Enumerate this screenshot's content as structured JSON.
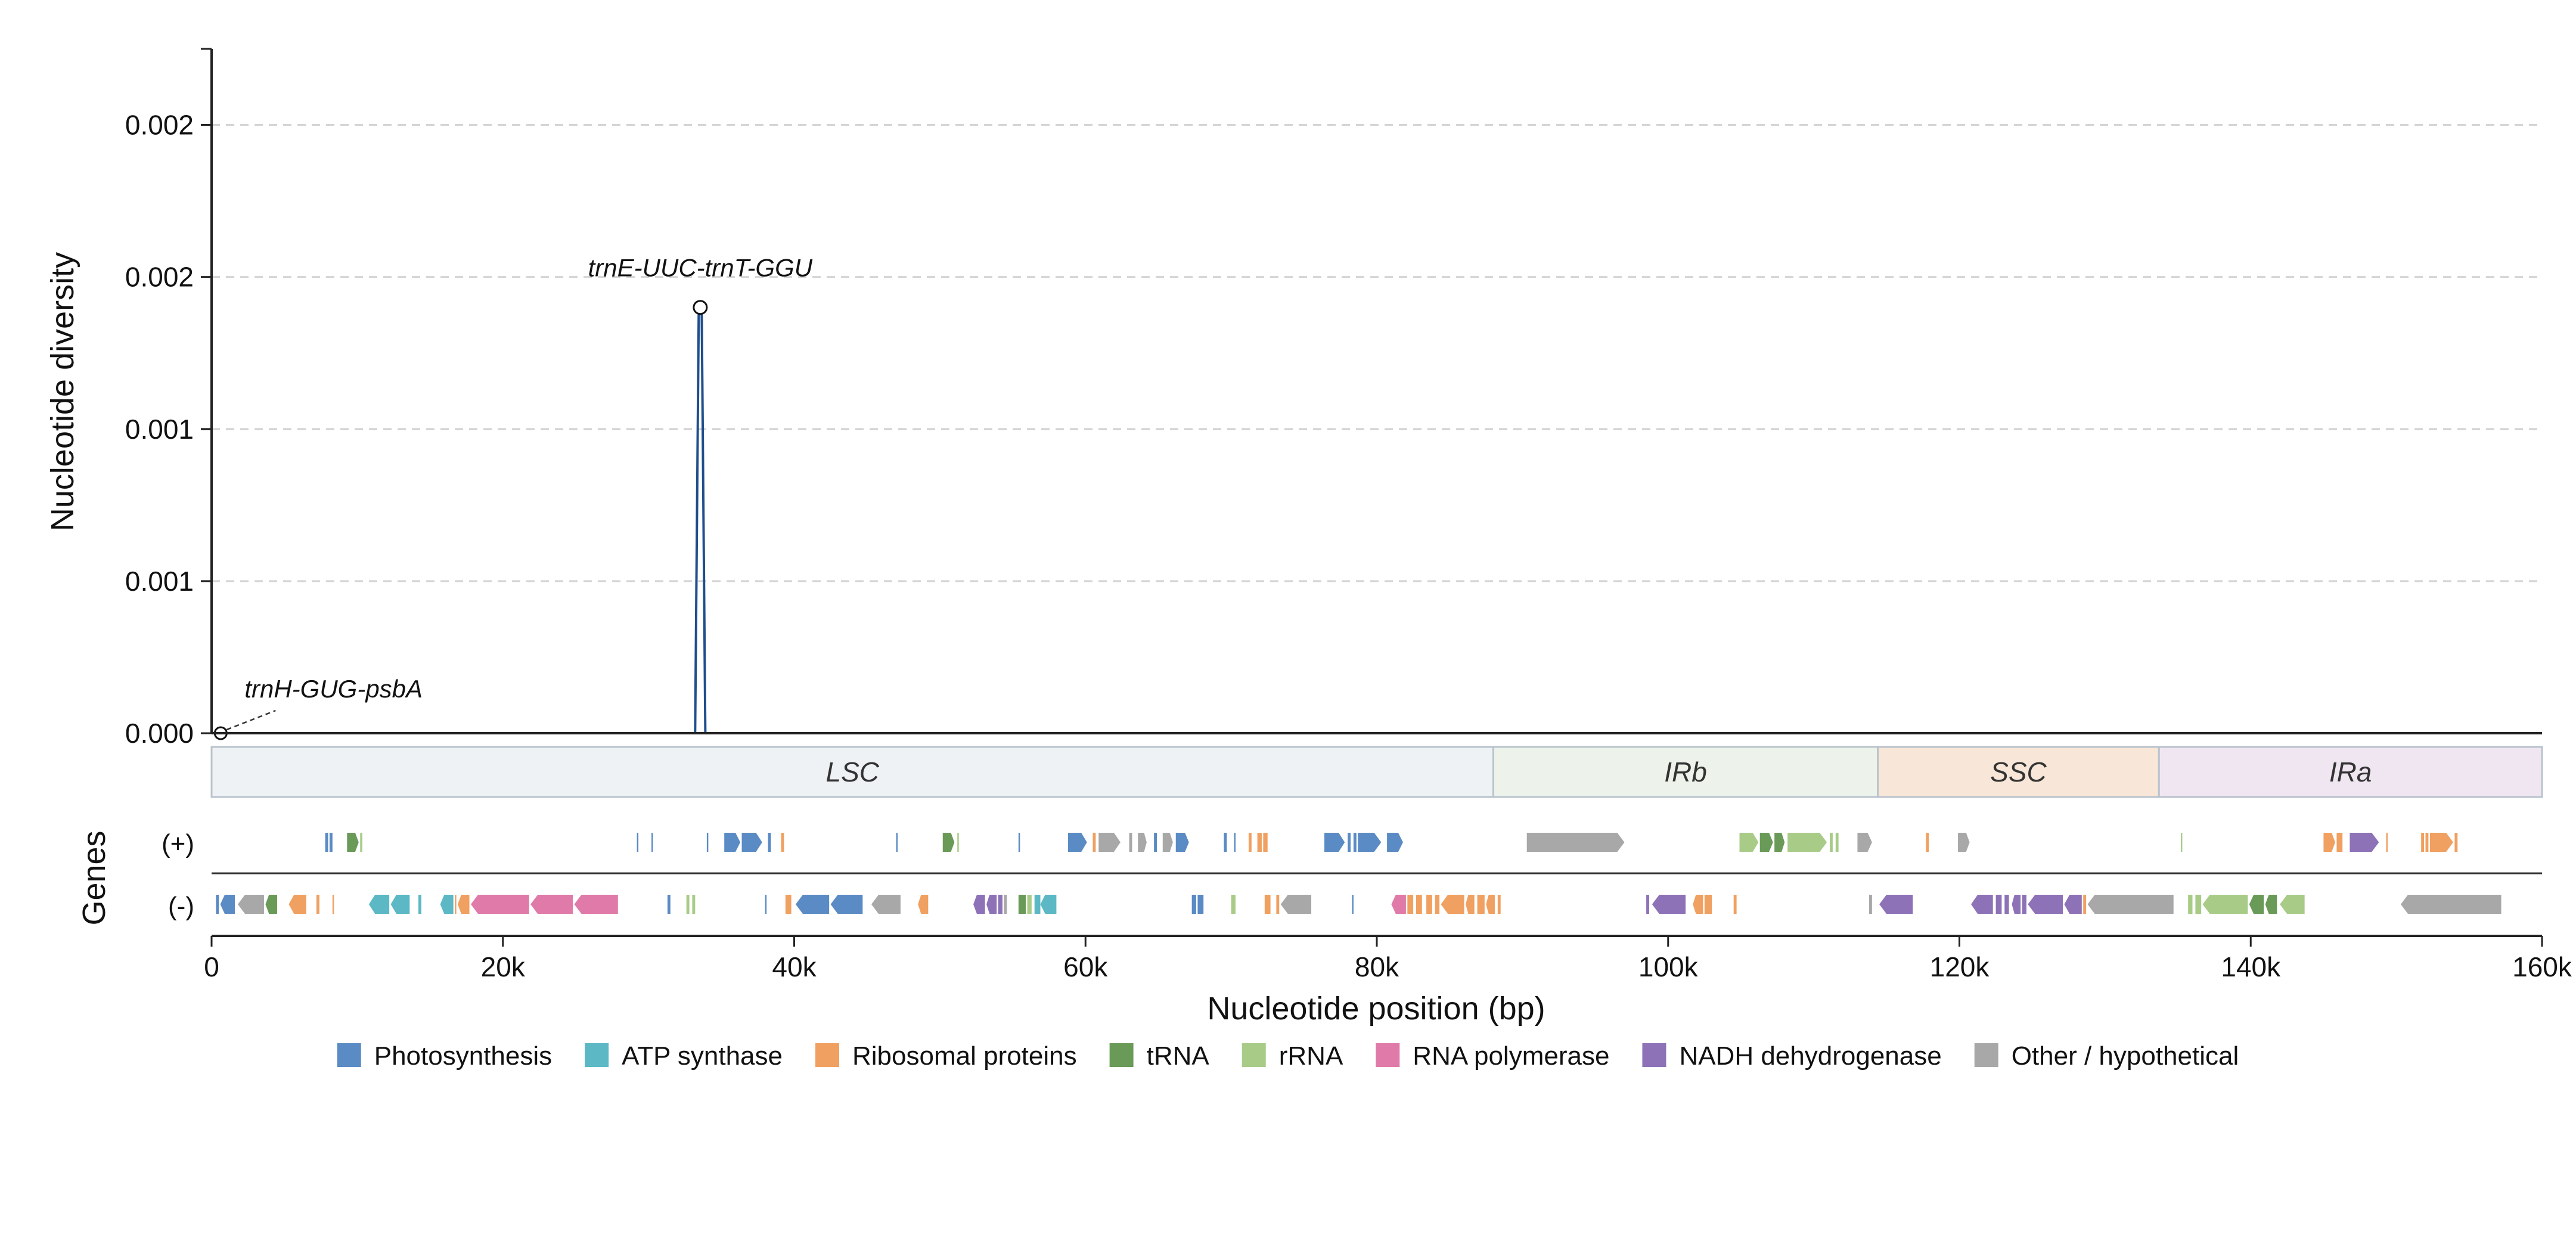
{
  "chart_data": {
    "type": "line",
    "ylabel": "Nucleotide diversity",
    "xlabel": "Nucleotide position (bp)",
    "xlim": [
      0,
      160000
    ],
    "ylim": [
      0,
      0.00225
    ],
    "yticks": [
      {
        "value": 0.0,
        "label": "0.000"
      },
      {
        "value": 0.0005,
        "label": "0.001"
      },
      {
        "value": 0.001,
        "label": "0.001"
      },
      {
        "value": 0.0015,
        "label": "0.002"
      },
      {
        "value": 0.002,
        "label": "0.002"
      }
    ],
    "xticks": [
      {
        "value": 0,
        "label": "0"
      },
      {
        "value": 20000,
        "label": "20k"
      },
      {
        "value": 40000,
        "label": "40k"
      },
      {
        "value": 60000,
        "label": "60k"
      },
      {
        "value": 80000,
        "label": "80k"
      },
      {
        "value": 100000,
        "label": "100k"
      },
      {
        "value": 120000,
        "label": "120k"
      },
      {
        "value": 140000,
        "label": "140k"
      },
      {
        "value": 160000,
        "label": "160k"
      }
    ],
    "grid": "horizontal-dashed",
    "series": [
      {
        "x": [
          0,
          33200,
          33450,
          33650,
          33900,
          160000
        ],
        "y": [
          0,
          0,
          0.0014,
          0.0014,
          0,
          0
        ]
      }
    ],
    "annotations": [
      {
        "text": "trnE-UUC-trnT-GGU",
        "x": 33550,
        "y": 0.0014
      },
      {
        "text": "trnH-GUG-psbA",
        "x": 300,
        "y": 0.0
      }
    ],
    "regions": [
      {
        "name": "LSC",
        "start": 0,
        "end": 88000,
        "color": "#eef2f5"
      },
      {
        "name": "IRb",
        "start": 88000,
        "end": 114400,
        "color": "#edf3ea"
      },
      {
        "name": "SSC",
        "start": 114400,
        "end": 133700,
        "color": "#f8e7d8"
      },
      {
        "name": "IRa",
        "start": 133700,
        "end": 160000,
        "color": "#f0e6f1"
      }
    ],
    "gene_track_label": "Genes",
    "strand_labels": {
      "plus": "(+)",
      "minus": "(-)"
    },
    "gene_categories": [
      {
        "name": "Photosynthesis",
        "color": "#5b8bc4"
      },
      {
        "name": "ATP synthase",
        "color": "#5bb8c4"
      },
      {
        "name": "Ribosomal proteins",
        "color": "#f0a060"
      },
      {
        "name": "tRNA",
        "color": "#6a9a58"
      },
      {
        "name": "rRNA",
        "color": "#a8cc88"
      },
      {
        "name": "RNA polymerase",
        "color": "#e07aa8"
      },
      {
        "name": "NADH dehydrogenase",
        "color": "#8e72b8"
      },
      {
        "name": "Other / hypothetical",
        "color": "#a8a8a8"
      }
    ],
    "genes_plus": [
      [
        7800,
        8000,
        0
      ],
      [
        8100,
        8300,
        0
      ],
      [
        9300,
        10100,
        3
      ],
      [
        10200,
        10350,
        4
      ],
      [
        29200,
        29300,
        0
      ],
      [
        30200,
        30300,
        0
      ],
      [
        34000,
        34100,
        0
      ],
      [
        35200,
        36300,
        0
      ],
      [
        36400,
        37800,
        0
      ],
      [
        38200,
        38400,
        0
      ],
      [
        39100,
        39300,
        2
      ],
      [
        47000,
        47100,
        0
      ],
      [
        50200,
        51000,
        3
      ],
      [
        51200,
        51300,
        4
      ],
      [
        55400,
        55500,
        0
      ],
      [
        58800,
        60100,
        0
      ],
      [
        60500,
        60700,
        2
      ],
      [
        60900,
        62400,
        7
      ],
      [
        63000,
        63200,
        7
      ],
      [
        63600,
        64200,
        7
      ],
      [
        64700,
        64900,
        0
      ],
      [
        65300,
        66000,
        7
      ],
      [
        66200,
        67100,
        0
      ],
      [
        69500,
        69700,
        0
      ],
      [
        70200,
        70300,
        0
      ],
      [
        71200,
        71400,
        2
      ],
      [
        71800,
        72100,
        2
      ],
      [
        72200,
        72500,
        2
      ],
      [
        76400,
        77800,
        0
      ],
      [
        78000,
        78200,
        0
      ],
      [
        78400,
        78600,
        0
      ],
      [
        78700,
        80300,
        0
      ],
      [
        80700,
        81800,
        0
      ],
      [
        90300,
        97000,
        7
      ],
      [
        104900,
        106200,
        4
      ],
      [
        106300,
        107200,
        3
      ],
      [
        107300,
        108000,
        3
      ],
      [
        108200,
        110900,
        4
      ],
      [
        111100,
        111300,
        4
      ],
      [
        111500,
        111700,
        4
      ],
      [
        113000,
        114000,
        7
      ],
      [
        117700,
        117900,
        2
      ],
      [
        119900,
        120700,
        7
      ],
      [
        135200,
        135300,
        4
      ],
      [
        145000,
        145800,
        2
      ],
      [
        145900,
        146300,
        2
      ],
      [
        146800,
        148800,
        6
      ],
      [
        149300,
        149400,
        2
      ],
      [
        151700,
        151900,
        2
      ],
      [
        152000,
        152200,
        2
      ],
      [
        152300,
        153900,
        2
      ],
      [
        154000,
        154200,
        2
      ]
    ],
    "genes_minus": [
      [
        300,
        500,
        0
      ],
      [
        600,
        1600,
        0
      ],
      [
        1800,
        3600,
        7
      ],
      [
        3700,
        4500,
        3
      ],
      [
        5300,
        6500,
        2
      ],
      [
        7200,
        7400,
        2
      ],
      [
        8300,
        8400,
        2
      ],
      [
        10800,
        12200,
        1
      ],
      [
        12300,
        13600,
        1
      ],
      [
        14200,
        14400,
        1
      ],
      [
        15700,
        16600,
        1
      ],
      [
        16700,
        16800,
        2
      ],
      [
        16900,
        17700,
        2
      ],
      [
        17800,
        21800,
        5
      ],
      [
        21900,
        24800,
        5
      ],
      [
        24900,
        27900,
        5
      ],
      [
        31300,
        31500,
        0
      ],
      [
        32600,
        32800,
        4
      ],
      [
        33000,
        33200,
        4
      ],
      [
        38000,
        38100,
        0
      ],
      [
        39400,
        39800,
        2
      ],
      [
        40100,
        42400,
        0
      ],
      [
        42500,
        44700,
        0
      ],
      [
        45300,
        47300,
        7
      ],
      [
        48500,
        49200,
        2
      ],
      [
        52300,
        53100,
        6
      ],
      [
        53200,
        53900,
        6
      ],
      [
        54000,
        54300,
        6
      ],
      [
        54400,
        54600,
        7
      ],
      [
        55400,
        55900,
        3
      ],
      [
        56000,
        56300,
        4
      ],
      [
        56500,
        56900,
        1
      ],
      [
        56900,
        58000,
        1
      ],
      [
        67300,
        67600,
        0
      ],
      [
        67700,
        68100,
        0
      ],
      [
        70000,
        70300,
        4
      ],
      [
        72300,
        72700,
        2
      ],
      [
        73100,
        73300,
        2
      ],
      [
        73400,
        75500,
        7
      ],
      [
        78300,
        78400,
        0
      ],
      [
        81000,
        82000,
        5
      ],
      [
        82100,
        82500,
        2
      ],
      [
        82700,
        83100,
        2
      ],
      [
        83400,
        83800,
        2
      ],
      [
        84000,
        84300,
        2
      ],
      [
        84400,
        86000,
        2
      ],
      [
        86100,
        86700,
        2
      ],
      [
        86900,
        87400,
        2
      ],
      [
        87500,
        88100,
        2
      ],
      [
        88300,
        88500,
        2
      ],
      [
        98500,
        98700,
        6
      ],
      [
        98900,
        101200,
        6
      ],
      [
        101700,
        102400,
        2
      ],
      [
        102500,
        103000,
        2
      ],
      [
        104500,
        104700,
        2
      ],
      [
        113800,
        114000,
        7
      ],
      [
        114500,
        116800,
        6
      ],
      [
        120800,
        122300,
        6
      ],
      [
        122500,
        122900,
        6
      ],
      [
        123100,
        123400,
        6
      ],
      [
        123600,
        124200,
        6
      ],
      [
        124300,
        124600,
        6
      ],
      [
        124700,
        127100,
        6
      ],
      [
        127200,
        128400,
        6
      ],
      [
        128500,
        128700,
        2
      ],
      [
        128800,
        134700,
        7
      ],
      [
        135700,
        136000,
        4
      ],
      [
        136200,
        136600,
        4
      ],
      [
        136700,
        139800,
        4
      ],
      [
        139900,
        140900,
        3
      ],
      [
        141000,
        141800,
        3
      ],
      [
        142000,
        143700,
        4
      ],
      [
        150300,
        157200,
        7
      ]
    ]
  }
}
